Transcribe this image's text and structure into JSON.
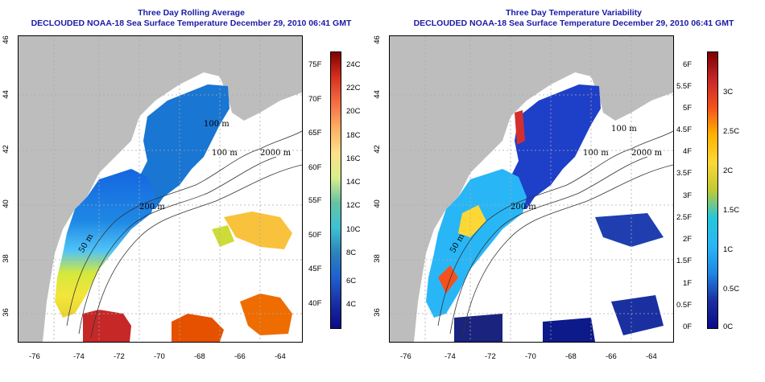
{
  "panels": [
    {
      "title_line1": "Three Day Rolling Average",
      "title_line2": "DECLOUDED NOAA-18 Sea Surface Temperature December 29, 2010 06:41 GMT",
      "colorbar_left_labels": [
        "75F",
        "70F",
        "65F",
        "60F",
        "55F",
        "50F",
        "45F",
        "40F"
      ],
      "colorbar_right_labels": [
        "24C",
        "22C",
        "20C",
        "18C",
        "16C",
        "14C",
        "12C",
        "10C",
        "8C",
        "6C",
        "4C"
      ]
    },
    {
      "title_line1": "Three Day Temperature Variability",
      "title_line2": "DECLOUDED NOAA-18 Sea Surface Temperature December 29, 2010 06:41 GMT",
      "colorbar_left_labels": [
        "6F",
        "5.5F",
        "5F",
        "4.5F",
        "4F",
        "3.5F",
        "3F",
        "2.5F",
        "2F",
        "1.5F",
        "1F",
        "0.5F",
        "0F"
      ],
      "colorbar_right_labels": [
        "3C",
        "2.5C",
        "2C",
        "1.5C",
        "1C",
        "0.5C",
        "0C"
      ]
    }
  ],
  "axes": {
    "x_ticks": [
      "-76",
      "-74",
      "-72",
      "-70",
      "-68",
      "-66",
      "-64"
    ],
    "y_ticks": [
      "46",
      "44",
      "42",
      "40",
      "38",
      "36"
    ]
  },
  "contour_labels": [
    "100 m",
    "2000 m",
    "100 m",
    "200 m",
    "50 m"
  ],
  "colors": {
    "title": "#1a1aa6",
    "land": "#bdbdbd",
    "ocean_missing": "#ffffff"
  }
}
